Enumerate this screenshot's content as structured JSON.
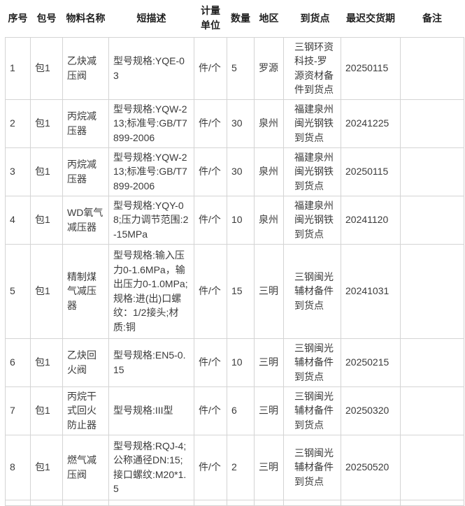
{
  "colors": {
    "background": "#ffffff",
    "border": "#d4d4d4",
    "header_text": "#1f1f1f",
    "cell_text": "#3b3b3b"
  },
  "table": {
    "columns": [
      {
        "key": "seq",
        "label": "序号"
      },
      {
        "key": "package",
        "label": "包号"
      },
      {
        "key": "material",
        "label": "物料名称"
      },
      {
        "key": "description",
        "label": "短描述"
      },
      {
        "key": "unit",
        "label": "计量单位"
      },
      {
        "key": "qty",
        "label": "数量"
      },
      {
        "key": "region",
        "label": "地区"
      },
      {
        "key": "delivery_point",
        "label": "到货点"
      },
      {
        "key": "latest_delivery",
        "label": "最迟交货期"
      },
      {
        "key": "remark",
        "label": "备注"
      }
    ],
    "rows": [
      {
        "seq": "1",
        "package": "包1",
        "material": "乙炔减压阀",
        "description": "型号规格:YQE-03",
        "unit": "件/个",
        "qty": "5",
        "region": "罗源",
        "delivery_point": "三钢环资科技-罗源资材备件到货点",
        "latest_delivery": "20250115",
        "remark": ""
      },
      {
        "seq": "2",
        "package": "包1",
        "material": "丙烷减压器",
        "description": "型号规格:YQW-213;标准号:GB/T7899-2006",
        "unit": "件/个",
        "qty": "30",
        "region": "泉州",
        "delivery_point": "福建泉州闽光钢铁到货点",
        "latest_delivery": "20241225",
        "remark": ""
      },
      {
        "seq": "3",
        "package": "包1",
        "material": "丙烷减压器",
        "description": "型号规格:YQW-213;标准号:GB/T7899-2006",
        "unit": "件/个",
        "qty": "30",
        "region": "泉州",
        "delivery_point": "福建泉州闽光钢铁到货点",
        "latest_delivery": "20250115",
        "remark": ""
      },
      {
        "seq": "4",
        "package": "包1",
        "material": "WD氧气减压器",
        "description": "型号规格:YQY-08;压力调节范围:2-15MPa",
        "unit": "件/个",
        "qty": "10",
        "region": "泉州",
        "delivery_point": "福建泉州闽光钢铁到货点",
        "latest_delivery": "20241120",
        "remark": ""
      },
      {
        "seq": "5",
        "package": "包1",
        "material": "精制煤气减压器",
        "description": "型号规格:输入压力0-1.6MPa，输出压力0-1.0MPa;规格:进(出)口螺纹：1/2接头;材质:铜",
        "unit": "件/个",
        "qty": "15",
        "region": "三明",
        "delivery_point": "三钢闽光辅材备件到货点",
        "latest_delivery": "20241031",
        "remark": ""
      },
      {
        "seq": "6",
        "package": "包1",
        "material": "乙炔回火阀",
        "description": "型号规格:EN5-0.15",
        "unit": "件/个",
        "qty": "10",
        "region": "三明",
        "delivery_point": "三钢闽光辅材备件到货点",
        "latest_delivery": "20250215",
        "remark": ""
      },
      {
        "seq": "7",
        "package": "包1",
        "material": "丙烷干式回火防止器",
        "description": "型号规格:III型",
        "unit": "件/个",
        "qty": "6",
        "region": "三明",
        "delivery_point": "三钢闽光辅材备件到货点",
        "latest_delivery": "20250320",
        "remark": ""
      },
      {
        "seq": "8",
        "package": "包1",
        "material": "燃气减压阀",
        "description": "型号规格:RQJ-4;公称通径DN:15;接口螺纹:M20*1.5",
        "unit": "件/个",
        "qty": "2",
        "region": "三明",
        "delivery_point": "三钢闽光辅材备件到货点",
        "latest_delivery": "20250520",
        "remark": ""
      },
      {
        "seq": "",
        "package": "",
        "material": "",
        "description": "",
        "unit": "",
        "qty": "",
        "region": "",
        "delivery_point": "",
        "latest_delivery": "",
        "remark": ""
      }
    ]
  }
}
